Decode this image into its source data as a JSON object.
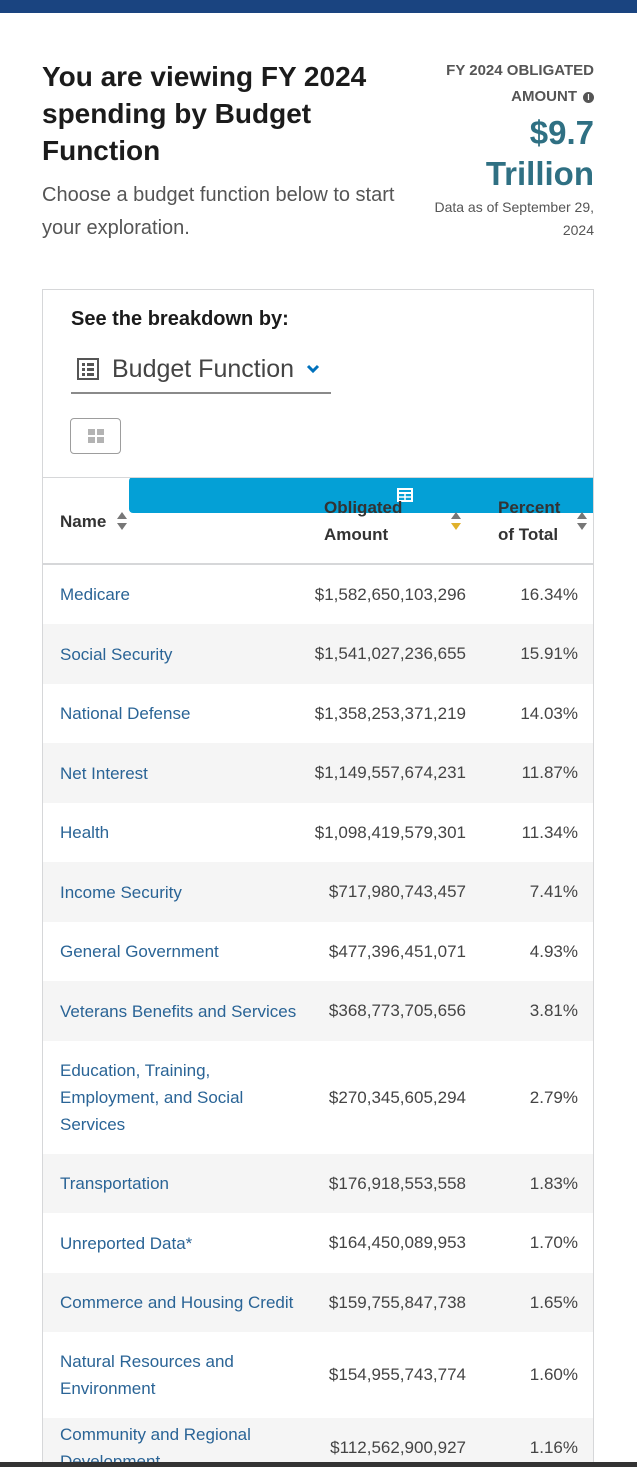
{
  "header": {
    "title": "You are viewing FY 2024 spending by Budget Function",
    "subtitle": "Choose a budget function below to start your exploration.",
    "summary_label": "FY 2024 OBLIGATED AMOUNT",
    "summary_info_icon": "i",
    "summary_value": "$9.7 Trillion",
    "summary_date": "Data as of September 29, 2024"
  },
  "controls": {
    "breakdown_label": "See the breakdown by:",
    "breakdown_selected": "Budget Function",
    "active_view": "table",
    "accent_color": "#04a0d6"
  },
  "table": {
    "columns": [
      "Name",
      "Obligated Amount",
      "Percent of Total"
    ],
    "active_sort": "Obligated Amount",
    "rows": [
      {
        "name": "Medicare",
        "amount": "$1,582,650,103,296",
        "percent": "16.34%"
      },
      {
        "name": "Social Security",
        "amount": "$1,541,027,236,655",
        "percent": "15.91%"
      },
      {
        "name": "National Defense",
        "amount": "$1,358,253,371,219",
        "percent": "14.03%"
      },
      {
        "name": "Net Interest",
        "amount": "$1,149,557,674,231",
        "percent": "11.87%"
      },
      {
        "name": "Health",
        "amount": "$1,098,419,579,301",
        "percent": "11.34%"
      },
      {
        "name": "Income Security",
        "amount": "$717,980,743,457",
        "percent": "7.41%"
      },
      {
        "name": "General Government",
        "amount": "$477,396,451,071",
        "percent": "4.93%"
      },
      {
        "name": "Veterans Benefits and Services",
        "amount": "$368,773,705,656",
        "percent": "3.81%"
      },
      {
        "name": "Education, Training, Employment, and Social Services",
        "amount": "$270,345,605,294",
        "percent": "2.79%"
      },
      {
        "name": "Transportation",
        "amount": "$176,918,553,558",
        "percent": "1.83%"
      },
      {
        "name": "Unreported Data*",
        "amount": "$164,450,089,953",
        "percent": "1.70%"
      },
      {
        "name": "Commerce and Housing Credit",
        "amount": "$159,755,847,738",
        "percent": "1.65%"
      },
      {
        "name": "Natural Resources and Environment",
        "amount": "$154,955,743,774",
        "percent": "1.60%"
      },
      {
        "name": "Community and Regional Development",
        "amount": "$112,562,900,927",
        "percent": "1.16%"
      }
    ]
  }
}
